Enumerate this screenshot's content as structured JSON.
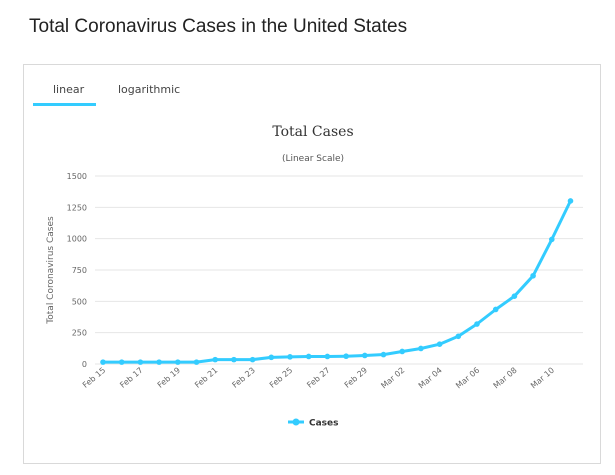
{
  "page": {
    "title": "Total Coronavirus Cases in the United States"
  },
  "tabs": [
    {
      "label": "linear",
      "active": true
    },
    {
      "label": "logarithmic",
      "active": false
    }
  ],
  "colors": {
    "series": "#33ccff",
    "tab_underline": "#33ccff"
  },
  "chart_data": {
    "type": "line",
    "title": "Total Cases",
    "subtitle": "(Linear Scale)",
    "ylabel": "Total Coronavirus Cases",
    "xlabel": "",
    "ylim": [
      0,
      1500
    ],
    "yticks": [
      0,
      250,
      500,
      750,
      1000,
      1250,
      1500
    ],
    "grid": true,
    "legend": "bottom",
    "x": [
      "Feb 15",
      "Feb 16",
      "Feb 17",
      "Feb 18",
      "Feb 19",
      "Feb 20",
      "Feb 21",
      "Feb 22",
      "Feb 23",
      "Feb 24",
      "Feb 25",
      "Feb 26",
      "Feb 27",
      "Feb 28",
      "Feb 29",
      "Mar 01",
      "Mar 02",
      "Mar 03",
      "Mar 04",
      "Mar 05",
      "Mar 06",
      "Mar 07",
      "Mar 08",
      "Mar 09",
      "Mar 10",
      "Mar 11"
    ],
    "xtick_labels": [
      "Feb 15",
      "Feb 17",
      "Feb 19",
      "Feb 21",
      "Feb 23",
      "Feb 25",
      "Feb 27",
      "Feb 29",
      "Mar 02",
      "Mar 04",
      "Mar 06",
      "Mar 08",
      "Mar 10"
    ],
    "series": [
      {
        "name": "Cases",
        "values": [
          15,
          15,
          15,
          15,
          15,
          15,
          35,
          35,
          35,
          53,
          57,
          60,
          60,
          62,
          68,
          75,
          100,
          124,
          158,
          221,
          319,
          435,
          541,
          704,
          994,
          1301
        ]
      }
    ]
  }
}
